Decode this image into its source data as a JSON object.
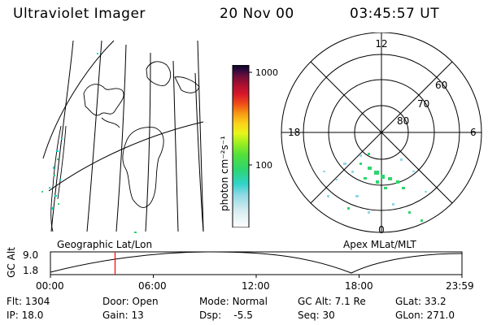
{
  "header": {
    "instrument": "Ultraviolet Imager",
    "date": "20 Nov 00",
    "time": "03:45:57 UT"
  },
  "geo_panel": {
    "label": "Geographic Lat/Lon"
  },
  "colorbar": {
    "unit_label": "photon cm⁻²s⁻¹",
    "ticks": [
      "1000",
      "100"
    ],
    "colors": [
      "#ffffff",
      "#d8eef0",
      "#8fd9e6",
      "#2fd3c9",
      "#2ed66d",
      "#55e03a",
      "#9ef01f",
      "#e8f51a",
      "#fbd31a",
      "#f79b14",
      "#ef4e16",
      "#d8172b",
      "#a90f2f",
      "#6f0d3b",
      "#2d0a3d",
      "#0a0620"
    ]
  },
  "polar_panel": {
    "label": "Apex MLat/MLT",
    "mlt_labels": {
      "top": "12",
      "left": "18",
      "right": "6",
      "bottom": "0"
    },
    "lat_labels": [
      "60",
      "70",
      "80"
    ]
  },
  "timeline": {
    "ylabel": "GC Alt",
    "y_max": "9.0",
    "y_min": "1.8",
    "x_ticks": [
      "00:00",
      "06:00",
      "12:00",
      "18:00",
      "23:59"
    ],
    "marker_time_hours": 3.77,
    "marker_color": "#ff0000"
  },
  "info": {
    "flt_label": "Flt:",
    "flt_value": "1304",
    "ip_label": "IP:",
    "ip_value": "18.0",
    "door_label": "Door:",
    "door_value": "Open",
    "gain_label": "Gain:",
    "gain_value": "13",
    "mode_label": "Mode:",
    "mode_value": "Normal",
    "dsp_label": "Dsp:",
    "dsp_value": "-5.5",
    "gcalt_label": "GC Alt:",
    "gcalt_value": "7.1 Re",
    "seq_label": "Seq:",
    "seq_value": "30",
    "glat_label": "GLat:",
    "glat_value": "33.2",
    "glon_label": "GLon:",
    "glon_value": "271.0"
  }
}
